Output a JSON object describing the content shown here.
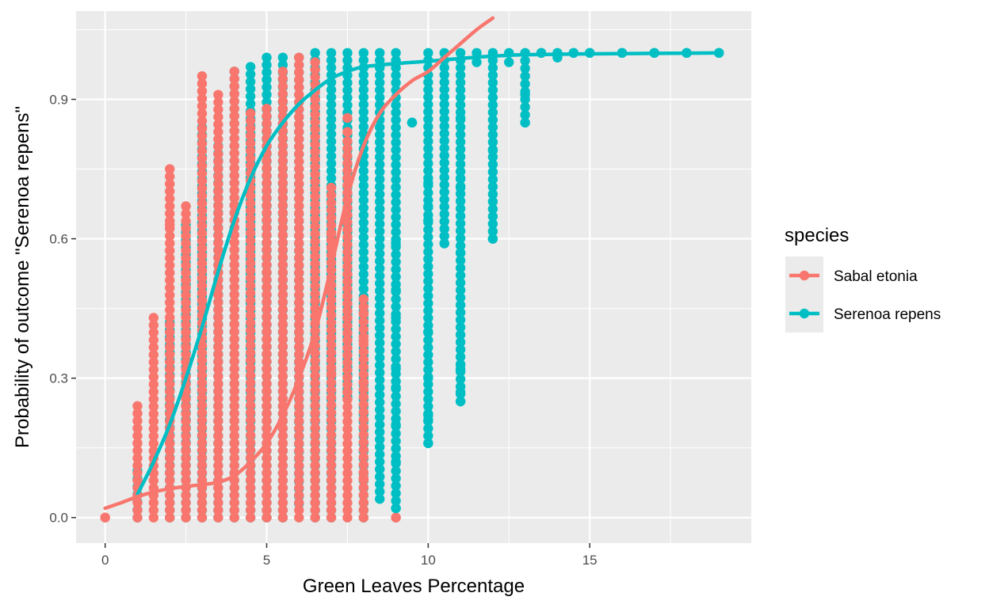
{
  "chart_data": {
    "type": "scatter",
    "xlabel": "Green Leaves Percentage",
    "ylabel": "Probability of outcome \"Serenoa repens\"",
    "xlim": [
      -0.9,
      20.0
    ],
    "ylim": [
      -0.055,
      1.09
    ],
    "x_ticks": [
      0,
      5,
      10,
      15
    ],
    "x_tick_labels": [
      "0",
      "5",
      "10",
      "15"
    ],
    "y_ticks": [
      0.0,
      0.3,
      0.6,
      0.9
    ],
    "y_tick_labels": [
      "0.0",
      "0.3",
      "0.6",
      "0.9"
    ],
    "grid": true,
    "background": "#ebebeb",
    "legend": {
      "title": "species",
      "position": "right",
      "entries": [
        "Sabal etonia",
        "Serenoa repens"
      ]
    },
    "series": [
      {
        "name": "Sabal etonia",
        "color": "#f8766d",
        "points_note_free": true,
        "x_values": [
          0,
          1,
          1.5,
          2,
          2.5,
          3,
          3.5,
          4,
          4.5,
          5,
          5.5,
          6,
          6.5,
          7,
          7.5,
          8,
          9
        ],
        "y_max": [
          0.0,
          0.24,
          0.43,
          0.75,
          0.67,
          0.95,
          0.91,
          0.96,
          0.87,
          0.88,
          0.96,
          0.99,
          0.98,
          0.71,
          0.81,
          0.47,
          0.0
        ],
        "extra_points": [
          {
            "x": 7,
            "y": 0.61
          },
          {
            "x": 7,
            "y": 0.31
          },
          {
            "x": 7.5,
            "y": 0.43
          },
          {
            "x": 7.5,
            "y": 0.27
          },
          {
            "x": 8,
            "y": 0.44
          },
          {
            "x": 8,
            "y": 0.38
          },
          {
            "x": 8,
            "y": 0.29
          },
          {
            "x": 8,
            "y": 0.085
          },
          {
            "x": 2,
            "y": 0.63
          },
          {
            "x": 2.5,
            "y": 0.51
          },
          {
            "x": 7.5,
            "y": 0.86
          },
          {
            "x": 7.5,
            "y": 0.83
          }
        ],
        "fit_curve": [
          [
            0,
            0.02
          ],
          [
            0.5,
            0.032
          ],
          [
            1,
            0.045
          ],
          [
            1.5,
            0.055
          ],
          [
            2,
            0.062
          ],
          [
            2.5,
            0.067
          ],
          [
            3,
            0.071
          ],
          [
            3.5,
            0.076
          ],
          [
            4,
            0.09
          ],
          [
            4.5,
            0.12
          ],
          [
            5,
            0.16
          ],
          [
            5.5,
            0.22
          ],
          [
            6,
            0.3
          ],
          [
            6.5,
            0.4
          ],
          [
            7,
            0.54
          ],
          [
            7.5,
            0.69
          ],
          [
            8,
            0.8
          ],
          [
            8.5,
            0.87
          ],
          [
            9,
            0.91
          ],
          [
            9.5,
            0.94
          ],
          [
            10,
            0.96
          ],
          [
            10.5,
            0.99
          ],
          [
            11,
            1.02
          ],
          [
            11.5,
            1.05
          ],
          [
            12,
            1.075
          ]
        ]
      },
      {
        "name": "Serenoa repens",
        "color": "#00bfc4",
        "x_values": [
          1,
          2,
          2.5,
          3,
          3.5,
          4,
          4.5,
          5,
          5.5,
          6,
          6.5,
          7,
          7.5,
          8,
          8.5,
          9,
          9.5,
          10,
          10.5,
          11,
          11.5,
          12,
          12.5,
          13,
          13.5,
          14,
          14.5,
          15,
          16,
          17,
          18,
          19
        ],
        "y_min": [
          0.0,
          0.0,
          0.0,
          0.0,
          0.0,
          0.0,
          0.0,
          0.0,
          0.0,
          0.03,
          0.0,
          0.0,
          0.26,
          0.0,
          0.04,
          0.02,
          0.85,
          0.16,
          0.59,
          0.25,
          0.98,
          0.6,
          0.98,
          0.85,
          1.0,
          0.99,
          1.0,
          1.0,
          1.0,
          1.0,
          1.0,
          1.0
        ],
        "y_max": [
          0.1,
          0.42,
          0.63,
          0.84,
          0.8,
          0.96,
          0.97,
          0.99,
          0.99,
          0.99,
          1.0,
          1.0,
          1.0,
          1.0,
          1.0,
          1.0,
          0.85,
          1.0,
          1.0,
          1.0,
          1.0,
          1.0,
          1.0,
          1.0,
          1.0,
          1.0,
          1.0,
          1.0,
          1.0,
          1.0,
          1.0,
          1.0
        ],
        "extra_points": [
          {
            "x": 9,
            "y": 0.59
          },
          {
            "x": 9,
            "y": 0.49
          },
          {
            "x": 9,
            "y": 0.43
          },
          {
            "x": 9,
            "y": 0.32
          },
          {
            "x": 9,
            "y": 0.28
          },
          {
            "x": 9,
            "y": 0.2
          },
          {
            "x": 9,
            "y": 0.12
          },
          {
            "x": 9,
            "y": 0.02
          },
          {
            "x": 10,
            "y": 0.4
          },
          {
            "x": 10,
            "y": 0.3
          },
          {
            "x": 10,
            "y": 0.22
          },
          {
            "x": 10,
            "y": 0.21
          },
          {
            "x": 10,
            "y": 0.16
          },
          {
            "x": 10,
            "y": 0.64
          },
          {
            "x": 10,
            "y": 0.67
          },
          {
            "x": 10,
            "y": 0.72
          },
          {
            "x": 11,
            "y": 0.57
          },
          {
            "x": 11,
            "y": 0.32
          },
          {
            "x": 11,
            "y": 0.27
          },
          {
            "x": 11,
            "y": 0.25
          },
          {
            "x": 11,
            "y": 0.86
          },
          {
            "x": 11,
            "y": 0.73
          },
          {
            "x": 11,
            "y": 0.71
          },
          {
            "x": 12,
            "y": 0.6
          },
          {
            "x": 12,
            "y": 0.79
          },
          {
            "x": 13,
            "y": 0.91
          },
          {
            "x": 13,
            "y": 0.85
          },
          {
            "x": 10.5,
            "y": 0.59
          },
          {
            "x": 9.5,
            "y": 0.85
          }
        ],
        "fit_curve": [
          [
            1,
            0.05
          ],
          [
            1.5,
            0.12
          ],
          [
            2,
            0.2
          ],
          [
            2.5,
            0.3
          ],
          [
            3,
            0.41
          ],
          [
            3.5,
            0.53
          ],
          [
            4,
            0.64
          ],
          [
            4.5,
            0.73
          ],
          [
            5,
            0.8
          ],
          [
            5.5,
            0.85
          ],
          [
            6,
            0.89
          ],
          [
            6.5,
            0.92
          ],
          [
            7,
            0.945
          ],
          [
            7.5,
            0.96
          ],
          [
            8,
            0.97
          ],
          [
            9,
            0.977
          ],
          [
            10,
            0.982
          ],
          [
            11,
            0.988
          ],
          [
            12,
            0.993
          ],
          [
            13,
            0.996
          ],
          [
            15,
            0.998
          ],
          [
            17,
            0.999
          ],
          [
            19,
            1.0
          ]
        ]
      }
    ]
  }
}
